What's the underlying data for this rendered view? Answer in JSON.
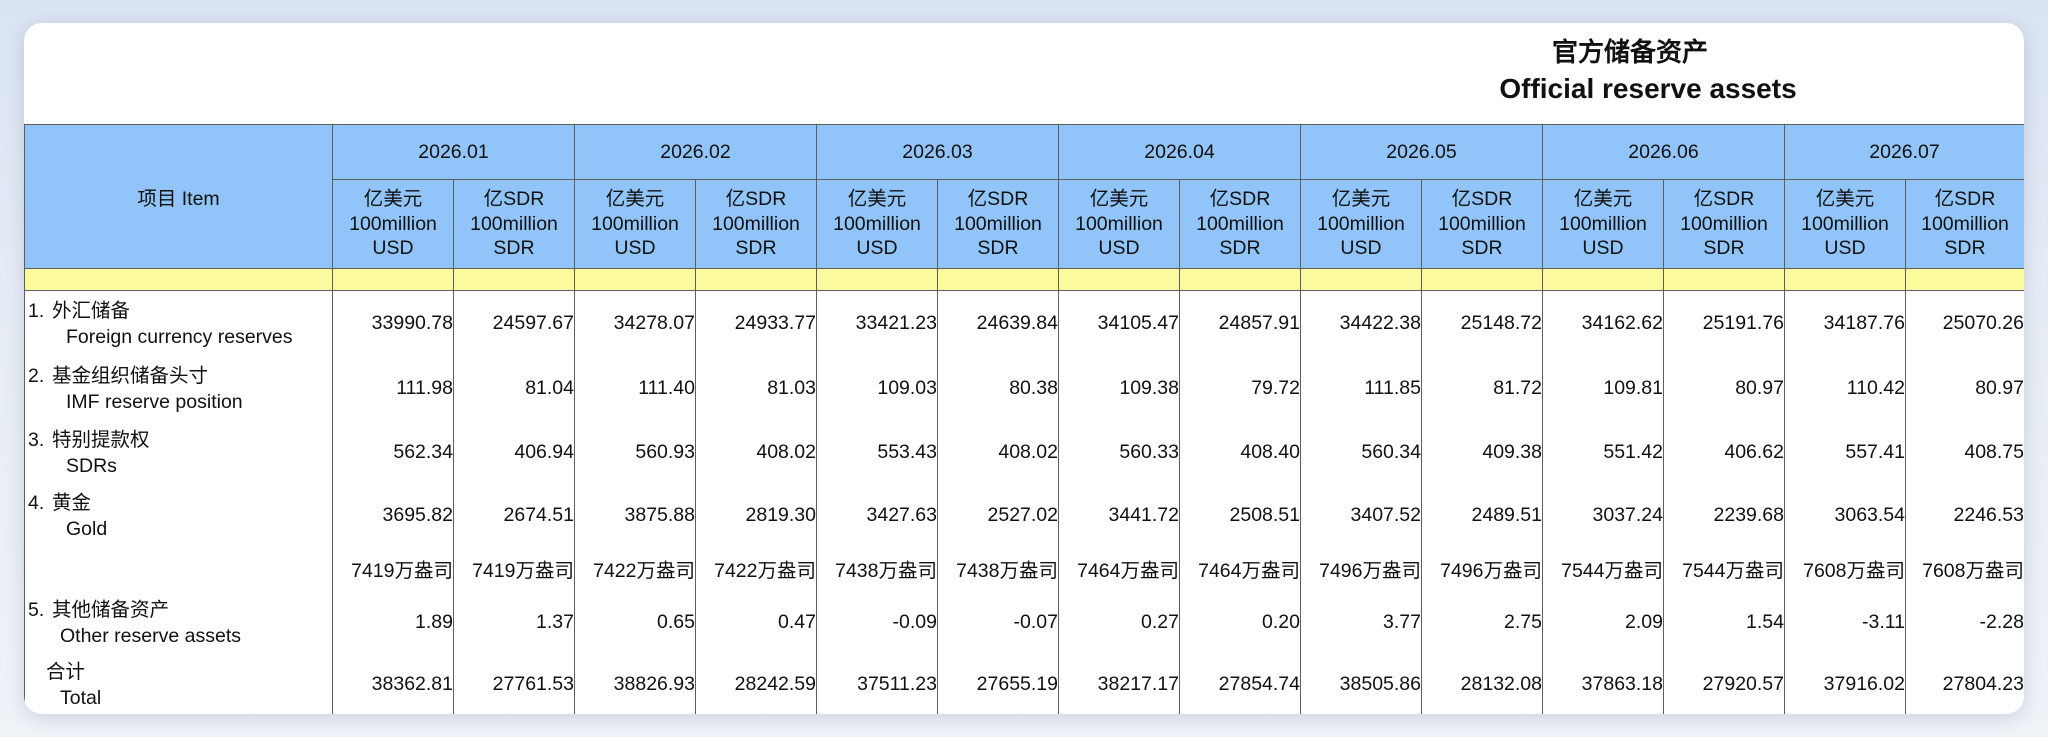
{
  "title": {
    "zh": "官方储备资产",
    "en": "Official reserve assets"
  },
  "colors": {
    "header_bg": "#91c4f8",
    "band_bg": "#fbfb9d",
    "grid_line": "#5e5e5e"
  },
  "header": {
    "item_label": "项目  Item",
    "periods": [
      "2026.01",
      "2026.02",
      "2026.03",
      "2026.04",
      "2026.05",
      "2026.06",
      "2026.07"
    ],
    "units": {
      "usd": [
        "亿美元",
        "100million",
        "USD"
      ],
      "sdr": [
        "亿SDR",
        "100million",
        "SDR"
      ]
    }
  },
  "rows": [
    {
      "num": "1.",
      "zh": "外汇储备",
      "en": "Foreign currency reserves",
      "values": [
        "33990.78",
        "24597.67",
        "34278.07",
        "24933.77",
        "33421.23",
        "24639.84",
        "34105.47",
        "24857.91",
        "34422.38",
        "25148.72",
        "34162.62",
        "25191.76",
        "34187.76",
        "25070.26"
      ]
    },
    {
      "num": "2.",
      "zh": "基金组织储备头寸",
      "en": "IMF reserve position",
      "values": [
        "111.98",
        "81.04",
        "111.40",
        "81.03",
        "109.03",
        "80.38",
        "109.38",
        "79.72",
        "111.85",
        "81.72",
        "109.81",
        "80.97",
        "110.42",
        "80.97"
      ]
    },
    {
      "num": "3.",
      "zh": "特别提款权",
      "en": "SDRs",
      "values": [
        "562.34",
        "406.94",
        "560.93",
        "408.02",
        "553.43",
        "408.02",
        "560.33",
        "408.40",
        "560.34",
        "409.38",
        "551.42",
        "406.62",
        "557.41",
        "408.75"
      ]
    },
    {
      "num": "4.",
      "zh": "黄金",
      "en": "Gold",
      "values": [
        "3695.82",
        "2674.51",
        "3875.88",
        "2819.30",
        "3427.63",
        "2527.02",
        "3441.72",
        "2508.51",
        "3407.52",
        "2489.51",
        "3037.24",
        "2239.68",
        "3063.54",
        "2246.53"
      ]
    },
    {
      "num": "5.",
      "zh": "其他储备资产",
      "en": "Other reserve assets",
      "values": [
        "1.89",
        "1.37",
        "0.65",
        "0.47",
        "-0.09",
        "-0.07",
        "0.27",
        "0.20",
        "3.77",
        "2.75",
        "2.09",
        "1.54",
        "-3.11",
        "-2.28"
      ]
    }
  ],
  "gold_ounces": [
    "7419万盎司",
    "7419万盎司",
    "7422万盎司",
    "7422万盎司",
    "7438万盎司",
    "7438万盎司",
    "7464万盎司",
    "7464万盎司",
    "7496万盎司",
    "7496万盎司",
    "7544万盎司",
    "7544万盎司",
    "7608万盎司",
    "7608万盎司"
  ],
  "total": {
    "zh": "合计",
    "en": "Total",
    "values": [
      "38362.81",
      "27761.53",
      "38826.93",
      "28242.59",
      "37511.23",
      "27655.19",
      "38217.17",
      "27854.74",
      "38505.86",
      "28132.08",
      "37863.18",
      "27920.57",
      "37916.02",
      "27804.23"
    ]
  }
}
